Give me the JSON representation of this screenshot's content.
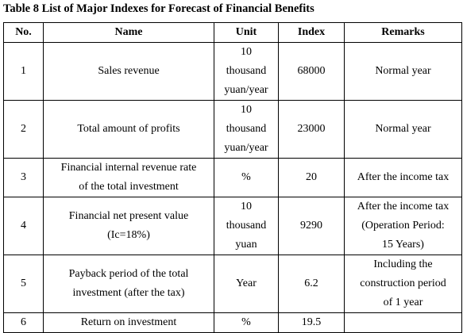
{
  "caption": "Table 8 List of Major Indexes for Forecast of Financial Benefits",
  "headers": {
    "no": "No.",
    "name": "Name",
    "unit": "Unit",
    "index": "Index",
    "remarks": "Remarks"
  },
  "rows": [
    {
      "no": "1",
      "name": "Sales revenue",
      "unit": "10\nthousand\nyuan/year",
      "index": "68000",
      "remarks": "Normal year"
    },
    {
      "no": "2",
      "name": "Total amount of profits",
      "unit": "10\nthousand\nyuan/year",
      "index": "23000",
      "remarks": "Normal year"
    },
    {
      "no": "3",
      "name": "Financial internal revenue rate\nof the total investment",
      "unit": "%",
      "index": "20",
      "remarks": "After the income tax"
    },
    {
      "no": "4",
      "name": "Financial net present value\n(Ic=18%)",
      "unit": "10\nthousand\nyuan",
      "index": "9290",
      "remarks": "After the income tax\n(Operation Period:\n15 Years)"
    },
    {
      "no": "5",
      "name": "Payback period of the total\ninvestment (after the tax)",
      "unit": "Year",
      "index": "6.2",
      "remarks": "Including the\nconstruction period\nof 1 year"
    },
    {
      "no": "6",
      "name": "Return on investment",
      "unit": "%",
      "index": "19.5",
      "remarks": ""
    }
  ]
}
